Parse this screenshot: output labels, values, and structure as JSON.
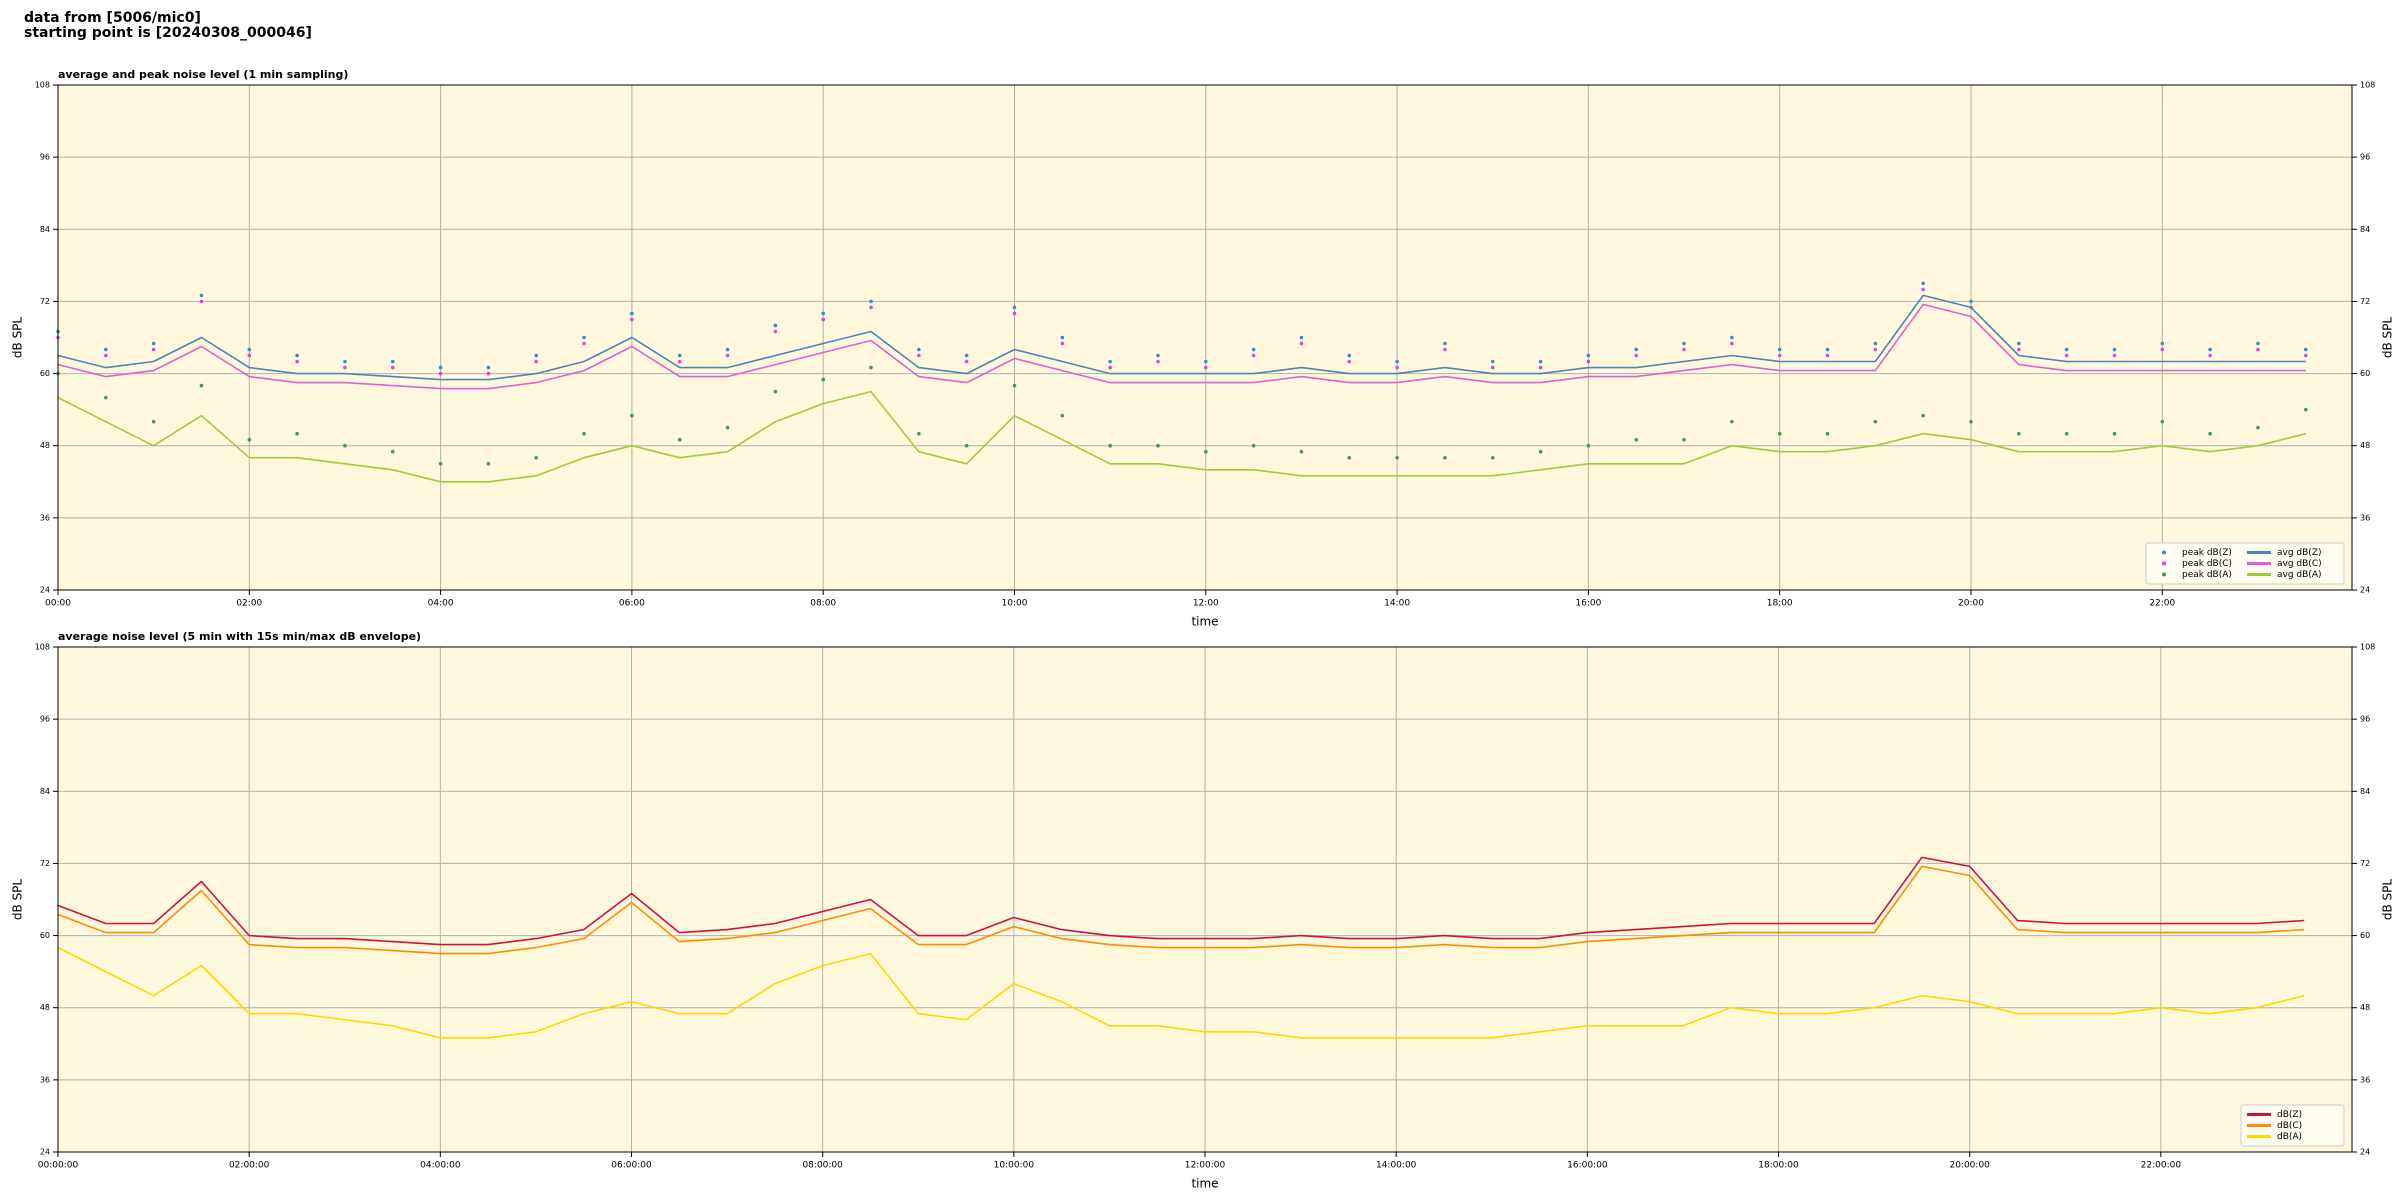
{
  "header": [
    "data from [5006/mic0]",
    "starting point is [20240308_000046]"
  ],
  "chart_data": [
    {
      "type": "line",
      "title": "average and peak noise level (1 min sampling)",
      "xlabel": "time",
      "ylabel": "dB SPL",
      "x": [
        "00:00",
        "00:30",
        "01:00",
        "01:30",
        "02:00",
        "02:30",
        "03:00",
        "03:30",
        "04:00",
        "04:30",
        "05:00",
        "05:30",
        "06:00",
        "06:30",
        "07:00",
        "07:30",
        "08:00",
        "08:30",
        "09:00",
        "09:30",
        "10:00",
        "10:30",
        "11:00",
        "11:30",
        "12:00",
        "12:30",
        "13:00",
        "13:30",
        "14:00",
        "14:30",
        "15:00",
        "15:30",
        "16:00",
        "16:30",
        "17:00",
        "17:30",
        "18:00",
        "18:30",
        "19:00",
        "19:30",
        "20:00",
        "20:30",
        "21:00",
        "21:30",
        "22:00",
        "22:30",
        "23:00",
        "23:30"
      ],
      "xlim": [
        "00:00",
        "23:59"
      ],
      "xticks": [
        "00:00",
        "02:00",
        "04:00",
        "06:00",
        "08:00",
        "10:00",
        "12:00",
        "14:00",
        "16:00",
        "18:00",
        "20:00",
        "22:00"
      ],
      "ylim": [
        24,
        108
      ],
      "yticks": [
        24,
        36,
        48,
        60,
        72,
        84,
        96,
        108
      ],
      "grid": true,
      "legend": "lower right",
      "series": [
        {
          "name": "peak dB(Z)",
          "style": "scatter",
          "color": "#2f8fd0",
          "values": [
            67,
            64,
            65,
            73,
            64,
            63,
            62,
            62,
            61,
            61,
            63,
            66,
            70,
            63,
            64,
            68,
            70,
            72,
            64,
            63,
            71,
            66,
            62,
            63,
            62,
            64,
            66,
            63,
            62,
            65,
            62,
            62,
            63,
            64,
            65,
            66,
            64,
            64,
            65,
            75,
            72,
            65,
            64,
            64,
            65,
            64,
            65,
            64
          ]
        },
        {
          "name": "peak dB(C)",
          "style": "scatter",
          "color": "#e83ee8",
          "values": [
            66,
            63,
            64,
            72,
            63,
            62,
            61,
            61,
            60,
            60,
            62,
            65,
            69,
            62,
            63,
            67,
            69,
            71,
            63,
            62,
            70,
            65,
            61,
            62,
            61,
            63,
            65,
            62,
            61,
            64,
            61,
            61,
            62,
            63,
            64,
            65,
            63,
            63,
            64,
            74,
            71,
            64,
            63,
            63,
            64,
            63,
            64,
            63
          ]
        },
        {
          "name": "peak dB(A)",
          "style": "scatter",
          "color": "#3f9a5c",
          "values": [
            60,
            56,
            52,
            58,
            49,
            50,
            48,
            47,
            45,
            45,
            46,
            50,
            53,
            49,
            51,
            57,
            59,
            61,
            50,
            48,
            58,
            53,
            48,
            48,
            47,
            48,
            47,
            46,
            46,
            46,
            46,
            47,
            48,
            49,
            49,
            52,
            50,
            50,
            52,
            53,
            52,
            50,
            50,
            50,
            52,
            50,
            51,
            54
          ]
        },
        {
          "name": "avg dB(Z)",
          "style": "line",
          "color": "#4a86b8",
          "values": [
            63,
            61,
            62,
            66,
            61,
            60,
            60,
            59.5,
            59,
            59,
            60,
            62,
            66,
            61,
            61,
            63,
            65,
            67,
            61,
            60,
            64,
            62,
            60,
            60,
            60,
            60,
            61,
            60,
            60,
            61,
            60,
            60,
            61,
            61,
            62,
            63,
            62,
            62,
            62,
            73,
            71,
            63,
            62,
            62,
            62,
            62,
            62,
            62
          ]
        },
        {
          "name": "avg dB(C)",
          "style": "line",
          "color": "#e060d0",
          "values": [
            61.5,
            59.5,
            60.5,
            64.5,
            59.5,
            58.5,
            58.5,
            58,
            57.5,
            57.5,
            58.5,
            60.5,
            64.5,
            59.5,
            59.5,
            61.5,
            63.5,
            65.5,
            59.5,
            58.5,
            62.5,
            60.5,
            58.5,
            58.5,
            58.5,
            58.5,
            59.5,
            58.5,
            58.5,
            59.5,
            58.5,
            58.5,
            59.5,
            59.5,
            60.5,
            61.5,
            60.5,
            60.5,
            60.5,
            71.5,
            69.5,
            61.5,
            60.5,
            60.5,
            60.5,
            60.5,
            60.5,
            60.5
          ]
        },
        {
          "name": "avg dB(A)",
          "style": "line",
          "color": "#a0cc3a",
          "values": [
            56,
            52,
            48,
            53,
            46,
            46,
            45,
            44,
            42,
            42,
            43,
            46,
            48,
            46,
            47,
            52,
            55,
            57,
            47,
            45,
            53,
            49,
            45,
            45,
            44,
            44,
            43,
            43,
            43,
            43,
            43,
            44,
            45,
            45,
            45,
            48,
            47,
            47,
            48,
            50,
            49,
            47,
            47,
            47,
            48,
            47,
            48,
            50
          ]
        }
      ]
    },
    {
      "type": "line",
      "title": "average noise level (5 min with 15s min/max dB envelope)",
      "xlabel": "time",
      "ylabel": "dB SPL",
      "x": [
        "00:00:00",
        "00:30:00",
        "01:00:00",
        "01:30:00",
        "02:00:00",
        "02:30:00",
        "03:00:00",
        "03:30:00",
        "04:00:00",
        "04:30:00",
        "05:00:00",
        "05:30:00",
        "06:00:00",
        "06:30:00",
        "07:00:00",
        "07:30:00",
        "08:00:00",
        "08:30:00",
        "09:00:00",
        "09:30:00",
        "10:00:00",
        "10:30:00",
        "11:00:00",
        "11:30:00",
        "12:00:00",
        "12:30:00",
        "13:00:00",
        "13:30:00",
        "14:00:00",
        "14:30:00",
        "15:00:00",
        "15:30:00",
        "16:00:00",
        "16:30:00",
        "17:00:00",
        "17:30:00",
        "18:00:00",
        "18:30:00",
        "19:00:00",
        "19:30:00",
        "20:00:00",
        "20:30:00",
        "21:00:00",
        "21:30:00",
        "22:00:00",
        "22:30:00",
        "23:00:00",
        "23:30:00"
      ],
      "xlim": [
        "00:00:00",
        "23:59:59"
      ],
      "xticks": [
        "00:00:00",
        "02:00:00",
        "04:00:00",
        "06:00:00",
        "08:00:00",
        "10:00:00",
        "12:00:00",
        "14:00:00",
        "16:00:00",
        "18:00:00",
        "20:00:00",
        "22:00:00"
      ],
      "ylim": [
        24,
        108
      ],
      "yticks": [
        24,
        36,
        48,
        60,
        72,
        84,
        96,
        108
      ],
      "grid": true,
      "legend": "lower right",
      "series": [
        {
          "name": "dB(Z)",
          "style": "line",
          "color": "#cc1144",
          "values": [
            65,
            62,
            62,
            69,
            60,
            59.5,
            59.5,
            59,
            58.5,
            58.5,
            59.5,
            61,
            67,
            60.5,
            61,
            62,
            64,
            66,
            60,
            60,
            63,
            61,
            60,
            59.5,
            59.5,
            59.5,
            60,
            59.5,
            59.5,
            60,
            59.5,
            59.5,
            60.5,
            61,
            61.5,
            62,
            62,
            62,
            62,
            73,
            71.5,
            62.5,
            62,
            62,
            62,
            62,
            62,
            62.5
          ]
        },
        {
          "name": "dB(C)",
          "style": "line",
          "color": "#ff8c00",
          "values": [
            63.5,
            60.5,
            60.5,
            67.5,
            58.5,
            58,
            58,
            57.5,
            57,
            57,
            58,
            59.5,
            65.5,
            59,
            59.5,
            60.5,
            62.5,
            64.5,
            58.5,
            58.5,
            61.5,
            59.5,
            58.5,
            58,
            58,
            58,
            58.5,
            58,
            58,
            58.5,
            58,
            58,
            59,
            59.5,
            60,
            60.5,
            60.5,
            60.5,
            60.5,
            71.5,
            70,
            61,
            60.5,
            60.5,
            60.5,
            60.5,
            60.5,
            61
          ]
        },
        {
          "name": "dB(A)",
          "style": "line",
          "color": "#ffd700",
          "values": [
            58,
            54,
            50,
            55,
            47,
            47,
            46,
            45,
            43,
            43,
            44,
            47,
            49,
            47,
            47,
            52,
            55,
            57,
            47,
            46,
            52,
            49,
            45,
            45,
            44,
            44,
            43,
            43,
            43,
            43,
            43,
            44,
            45,
            45,
            45,
            48,
            47,
            47,
            48,
            50,
            49,
            47,
            47,
            47,
            48,
            47,
            48,
            50
          ]
        }
      ]
    }
  ]
}
